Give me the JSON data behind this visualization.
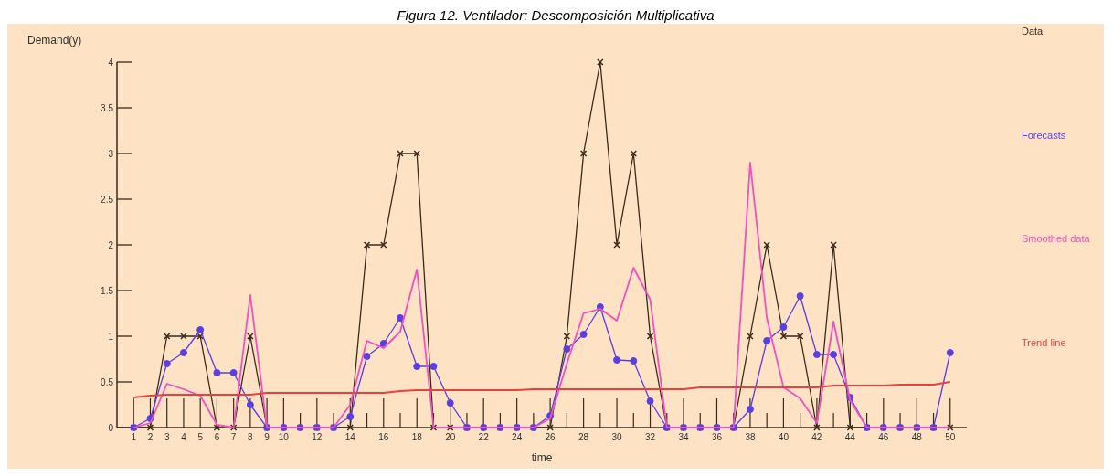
{
  "chart_data": {
    "type": "line",
    "title": "Figura 12. Ventilador: Descomposición Multiplicativa",
    "xlabel": "time",
    "ylabel": "Demand(y)",
    "x": [
      1,
      2,
      3,
      4,
      5,
      6,
      7,
      8,
      9,
      10,
      11,
      12,
      13,
      14,
      15,
      16,
      17,
      18,
      19,
      20,
      21,
      22,
      23,
      24,
      25,
      26,
      27,
      28,
      29,
      30,
      31,
      32,
      33,
      34,
      35,
      36,
      37,
      38,
      39,
      40,
      41,
      42,
      43,
      44,
      45,
      46,
      47,
      48,
      49,
      50
    ],
    "xlim": [
      0,
      51
    ],
    "ylim": [
      0,
      4
    ],
    "xticks": [
      1,
      2,
      3,
      4,
      5,
      6,
      7,
      8,
      9,
      10,
      {
        "value": 11,
        "label": null
      },
      12,
      {
        "value": 13,
        "label": null
      },
      14,
      {
        "value": 15,
        "label": null
      },
      16,
      {
        "value": 17,
        "label": null
      },
      18,
      {
        "value": 19,
        "label": null
      },
      20,
      {
        "value": 21,
        "label": null
      },
      22,
      {
        "value": 23,
        "label": null
      },
      24,
      {
        "value": 25,
        "label": null
      },
      26,
      {
        "value": 27,
        "label": null
      },
      28,
      {
        "value": 29,
        "label": null
      },
      30,
      {
        "value": 31,
        "label": null
      },
      32,
      {
        "value": 33,
        "label": null
      },
      34,
      {
        "value": 35,
        "label": null
      },
      36,
      {
        "value": 37,
        "label": null
      },
      38,
      {
        "value": 39,
        "label": null
      },
      40,
      {
        "value": 41,
        "label": null
      },
      42,
      {
        "value": 43,
        "label": null
      },
      44,
      {
        "value": 45,
        "label": null
      },
      46,
      {
        "value": 47,
        "label": null
      },
      48,
      {
        "value": 49,
        "label": null
      },
      50
    ],
    "yticks": [
      0,
      0.5,
      1,
      1.5,
      2,
      2.5,
      3,
      3.5,
      4
    ],
    "grid": false,
    "legend": "right",
    "series": [
      {
        "name": "Data",
        "color": "#3a2a1a",
        "marker": "cross",
        "values": [
          0,
          0,
          1,
          1,
          1,
          0,
          0,
          1,
          0,
          0,
          0,
          0,
          0,
          0,
          2,
          2,
          3,
          3,
          0,
          0,
          0,
          0,
          0,
          0,
          0,
          0,
          1,
          3,
          4,
          2,
          3,
          1,
          0,
          0,
          0,
          0,
          0,
          1,
          2,
          1,
          1,
          0,
          2,
          0,
          0,
          0,
          0,
          0,
          0,
          0
        ]
      },
      {
        "name": "Forecasts",
        "color": "#5b3fe0",
        "marker": "circle",
        "values": [
          0,
          0.1,
          0.7,
          0.82,
          1.07,
          0.6,
          0.6,
          0.25,
          0,
          0,
          0,
          0,
          0,
          0.12,
          0.78,
          0.92,
          1.2,
          0.67,
          0.67,
          0.27,
          0,
          0,
          0,
          0,
          0,
          0.13,
          0.86,
          1.02,
          1.32,
          0.74,
          0.73,
          0.29,
          0,
          0,
          0,
          0,
          0,
          0.2,
          0.95,
          1.1,
          1.44,
          0.8,
          0.8,
          0.33,
          0,
          0,
          0,
          0,
          0,
          0.82
        ]
      },
      {
        "name": "Smoothed data",
        "color": "#f050c0",
        "marker": "none",
        "values": [
          0,
          0.05,
          0.48,
          0.42,
          0.35,
          0.03,
          0,
          1.45,
          0,
          0,
          0,
          0,
          0,
          0.25,
          0.95,
          0.87,
          1.05,
          1.73,
          0,
          0,
          0,
          0,
          0,
          0,
          0,
          0.1,
          0.7,
          1.25,
          1.3,
          1.17,
          1.75,
          1.4,
          0,
          0,
          0,
          0,
          0,
          2.9,
          1.2,
          0.44,
          0.32,
          0.05,
          1.16,
          0.3,
          0,
          0,
          0,
          0,
          0,
          0
        ]
      },
      {
        "name": "Trend line",
        "color": "#e84040",
        "marker": "none",
        "values": [
          0.33,
          0.35,
          0.36,
          0.36,
          0.36,
          0.36,
          0.36,
          0.36,
          0.38,
          0.38,
          0.38,
          0.38,
          0.38,
          0.38,
          0.38,
          0.38,
          0.4,
          0.41,
          0.41,
          0.41,
          0.41,
          0.41,
          0.41,
          0.41,
          0.42,
          0.42,
          0.42,
          0.42,
          0.42,
          0.42,
          0.42,
          0.42,
          0.42,
          0.42,
          0.44,
          0.44,
          0.44,
          0.44,
          0.44,
          0.44,
          0.44,
          0.44,
          0.46,
          0.46,
          0.46,
          0.46,
          0.47,
          0.47,
          0.47,
          0.5
        ]
      }
    ]
  }
}
